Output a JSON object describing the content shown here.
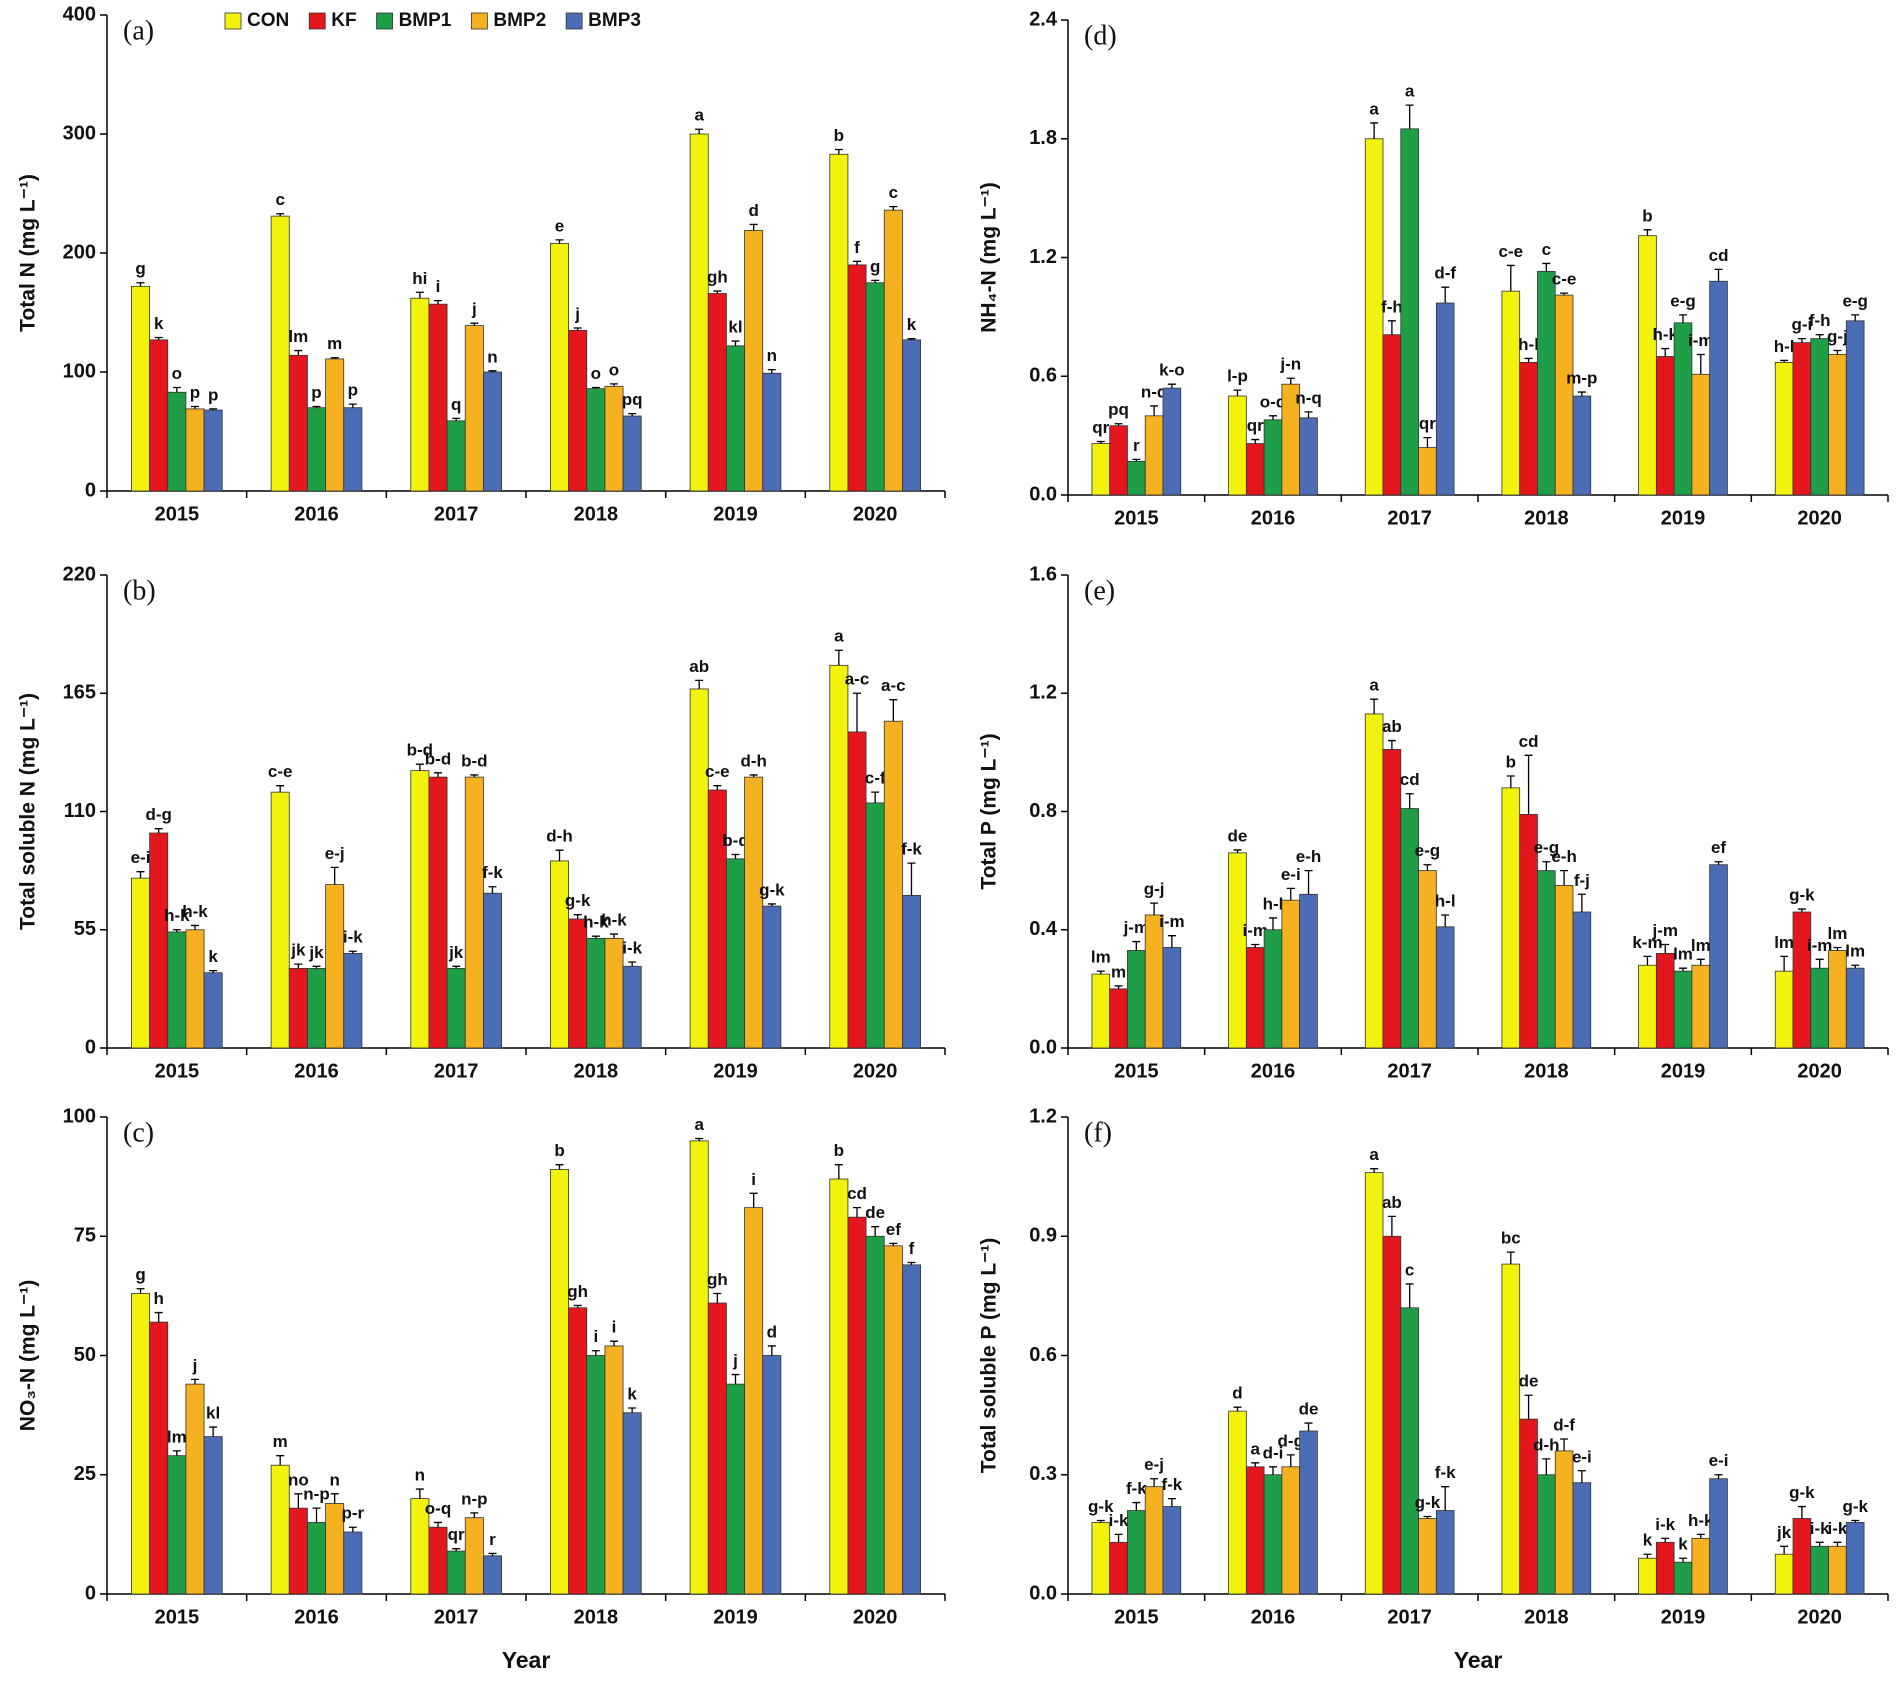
{
  "chart_data": [
    {
      "type": "bar",
      "title": "(a)",
      "y_label": "Total N (mg L⁻¹)",
      "legend": "top",
      "categories": [
        "2015",
        "2016",
        "2017",
        "2018",
        "2019",
        "2020"
      ],
      "ylim": [
        0,
        400
      ],
      "yticks": [
        0,
        100,
        200,
        300,
        400
      ],
      "series": [
        {
          "name": "CON",
          "color": "#f2f20c",
          "values": [
            172,
            231,
            162,
            208,
            300,
            283
          ],
          "errors": [
            3,
            2,
            5,
            3,
            4,
            4
          ],
          "letters": [
            "g",
            "c",
            "hi",
            "e",
            "a",
            "b"
          ]
        },
        {
          "name": "KF",
          "color": "#e3171d",
          "values": [
            127,
            114,
            157,
            135,
            166,
            190
          ],
          "errors": [
            2,
            4,
            3,
            2,
            2,
            3
          ],
          "letters": [
            "k",
            "lm",
            "i",
            "j",
            "gh",
            "f"
          ]
        },
        {
          "name": "BMP1",
          "color": "#1f9e48",
          "values": [
            83,
            70,
            59,
            86,
            122,
            175
          ],
          "errors": [
            4,
            1,
            2,
            1,
            4,
            2
          ],
          "letters": [
            "o",
            "p",
            "q",
            "o",
            "kl",
            "g"
          ]
        },
        {
          "name": "BMP2",
          "color": "#f5b11f",
          "values": [
            69,
            111,
            139,
            88,
            219,
            236
          ],
          "errors": [
            2,
            1,
            2,
            2,
            5,
            3
          ],
          "letters": [
            "p",
            "m",
            "j",
            "o",
            "d",
            "c"
          ]
        },
        {
          "name": "BMP3",
          "color": "#4a6db5",
          "values": [
            68,
            70,
            100,
            63,
            99,
            127
          ],
          "errors": [
            1,
            3,
            1,
            2,
            3,
            1
          ],
          "letters": [
            "p",
            "p",
            "n",
            "pq",
            "n",
            "k"
          ]
        }
      ]
    },
    {
      "type": "bar",
      "title": "(b)",
      "y_label": "Total soluble N (mg L⁻¹)",
      "categories": [
        "2015",
        "2016",
        "2017",
        "2018",
        "2019",
        "2020"
      ],
      "ylim": [
        0,
        220
      ],
      "yticks": [
        0,
        55,
        110,
        165,
        220
      ],
      "series": [
        {
          "color": "#f2f20c",
          "values": [
            79,
            119,
            129,
            87,
            167,
            178
          ],
          "errors": [
            3,
            3,
            3,
            5,
            4,
            7
          ],
          "letters": [
            "e-i",
            "c-e",
            "b-d",
            "d-h",
            "ab",
            "a"
          ]
        },
        {
          "color": "#e3171d",
          "values": [
            100,
            37,
            126,
            60,
            120,
            147
          ],
          "errors": [
            2,
            2,
            2,
            2,
            2,
            18
          ],
          "letters": [
            "d-g",
            "jk",
            "b-d",
            "g-k",
            "c-e",
            "a-c"
          ]
        },
        {
          "color": "#1f9e48",
          "values": [
            54,
            37,
            37,
            51,
            88,
            114
          ],
          "errors": [
            1,
            1,
            1,
            1,
            2,
            5
          ],
          "letters": [
            "h-k",
            "jk",
            "jk",
            "h-k",
            "b-d",
            "c-f"
          ]
        },
        {
          "color": "#f5b11f",
          "values": [
            55,
            76,
            126,
            51,
            126,
            152
          ],
          "errors": [
            2,
            8,
            1,
            2,
            1,
            10
          ],
          "letters": [
            "h-k",
            "e-j",
            "b-d",
            "h-k",
            "d-h",
            "a-c"
          ]
        },
        {
          "color": "#4a6db5",
          "values": [
            35,
            44,
            72,
            38,
            66,
            71
          ],
          "errors": [
            1,
            1,
            3,
            2,
            1,
            15
          ],
          "letters": [
            "k",
            "i-k",
            "f-k",
            "i-k",
            "g-k",
            "f-k"
          ]
        }
      ]
    },
    {
      "type": "bar",
      "title": "(c)",
      "y_label": "NO₃-N (mg L⁻¹)",
      "x_label": "Year",
      "categories": [
        "2015",
        "2016",
        "2017",
        "2018",
        "2019",
        "2020"
      ],
      "ylim": [
        0,
        100
      ],
      "yticks": [
        0,
        25,
        50,
        75,
        100
      ],
      "series": [
        {
          "color": "#f2f20c",
          "values": [
            63,
            27,
            20,
            89,
            95,
            87
          ],
          "errors": [
            1,
            2,
            2,
            1,
            0.5,
            3
          ],
          "letters": [
            "g",
            "m",
            "n",
            "b",
            "a",
            "b"
          ]
        },
        {
          "color": "#e3171d",
          "values": [
            57,
            18,
            14,
            60,
            61,
            79
          ],
          "errors": [
            2,
            3,
            1,
            0.5,
            2,
            2
          ],
          "letters": [
            "h",
            "no",
            "o-q",
            "gh",
            "gh",
            "cd"
          ]
        },
        {
          "color": "#1f9e48",
          "values": [
            29,
            15,
            9,
            50,
            44,
            75
          ],
          "errors": [
            1,
            3,
            0.5,
            1,
            2,
            2
          ],
          "letters": [
            "lm",
            "n-p",
            "qr",
            "i",
            "j",
            "de"
          ]
        },
        {
          "color": "#f5b11f",
          "values": [
            44,
            19,
            16,
            52,
            81,
            73
          ],
          "errors": [
            1,
            2,
            1,
            1,
            3,
            0.5
          ],
          "letters": [
            "j",
            "n",
            "n-p",
            "i",
            "i",
            "ef"
          ]
        },
        {
          "color": "#4a6db5",
          "values": [
            33,
            13,
            8,
            38,
            50,
            69
          ],
          "errors": [
            2,
            1,
            0.5,
            1,
            2,
            0.5
          ],
          "letters": [
            "kl",
            "p-r",
            "r",
            "k",
            "d",
            "f"
          ]
        }
      ]
    },
    {
      "type": "bar",
      "title": "(d)",
      "y_label": "NH₄-N (mg L⁻¹)",
      "categories": [
        "2015",
        "2016",
        "2017",
        "2018",
        "2019",
        "2020"
      ],
      "ylim": [
        0,
        2.4
      ],
      "yticks": [
        {
          "value": 0,
          "label": "0.0"
        },
        0.6,
        1.2,
        1.8,
        2.4
      ],
      "series": [
        {
          "color": "#f2f20c",
          "values": [
            0.26,
            0.5,
            1.8,
            1.03,
            1.31,
            0.67
          ],
          "errors": [
            0.01,
            0.03,
            0.08,
            0.13,
            0.03,
            0.01
          ],
          "letters": [
            "qr",
            "l-p",
            "a",
            "c-e",
            "b",
            "h-l"
          ]
        },
        {
          "color": "#e3171d",
          "values": [
            0.35,
            0.26,
            0.81,
            0.67,
            0.7,
            0.77
          ],
          "errors": [
            0.01,
            0.02,
            0.07,
            0.02,
            0.04,
            0.02
          ],
          "letters": [
            "pq",
            "qr",
            "f-h",
            "h-l",
            "h-k",
            "g-i"
          ]
        },
        {
          "color": "#1f9e48",
          "values": [
            0.17,
            0.38,
            1.85,
            1.13,
            0.87,
            0.79
          ],
          "errors": [
            0.01,
            0.02,
            0.12,
            0.04,
            0.04,
            0.02
          ],
          "letters": [
            "r",
            "o-q",
            "a",
            "c",
            "e-g",
            "f-h"
          ]
        },
        {
          "color": "#f5b11f",
          "values": [
            0.4,
            0.56,
            0.24,
            1.01,
            0.61,
            0.71
          ],
          "errors": [
            0.05,
            0.03,
            0.05,
            0.01,
            0.1,
            0.02
          ],
          "letters": [
            "n-q",
            "j-n",
            "qr",
            "c-e",
            "i-m",
            "g-j"
          ]
        },
        {
          "color": "#4a6db5",
          "values": [
            0.54,
            0.39,
            0.97,
            0.5,
            1.08,
            0.88
          ],
          "errors": [
            0.02,
            0.03,
            0.08,
            0.02,
            0.06,
            0.03
          ],
          "letters": [
            "k-o",
            "n-q",
            "d-f",
            "m-p",
            "cd",
            "e-g"
          ]
        }
      ]
    },
    {
      "type": "bar",
      "title": "(e)",
      "y_label": "Total P (mg L⁻¹)",
      "categories": [
        "2015",
        "2016",
        "2017",
        "2018",
        "2019",
        "2020"
      ],
      "ylim": [
        0,
        1.6
      ],
      "yticks": [
        {
          "value": 0,
          "label": "0.0"
        },
        0.4,
        0.8,
        1.2,
        1.6
      ],
      "series": [
        {
          "color": "#f2f20c",
          "values": [
            0.25,
            0.66,
            1.13,
            0.88,
            0.28,
            0.26
          ],
          "errors": [
            0.01,
            0.01,
            0.05,
            0.04,
            0.03,
            0.05
          ],
          "letters": [
            "lm",
            "de",
            "a",
            "b",
            "k-m",
            "lm"
          ]
        },
        {
          "color": "#e3171d",
          "values": [
            0.2,
            0.34,
            1.01,
            0.79,
            0.32,
            0.46
          ],
          "errors": [
            0.01,
            0.01,
            0.03,
            0.2,
            0.03,
            0.01
          ],
          "letters": [
            "m",
            "i-m",
            "ab",
            "cd",
            "j-m",
            "g-k"
          ]
        },
        {
          "color": "#1f9e48",
          "values": [
            0.33,
            0.4,
            0.81,
            0.6,
            0.26,
            0.27
          ],
          "errors": [
            0.03,
            0.04,
            0.05,
            0.03,
            0.01,
            0.03
          ],
          "letters": [
            "j-m",
            "h-l",
            "cd",
            "e-g",
            "lm",
            "i-m"
          ]
        },
        {
          "color": "#f5b11f",
          "values": [
            0.45,
            0.5,
            0.6,
            0.55,
            0.28,
            0.33
          ],
          "errors": [
            0.04,
            0.04,
            0.02,
            0.05,
            0.02,
            0.01
          ],
          "letters": [
            "g-j",
            "e-i",
            "e-g",
            "e-h",
            "lm",
            "lm"
          ]
        },
        {
          "color": "#4a6db5",
          "values": [
            0.34,
            0.52,
            0.41,
            0.46,
            0.62,
            0.27
          ],
          "errors": [
            0.04,
            0.08,
            0.04,
            0.06,
            0.01,
            0.01
          ],
          "letters": [
            "i-m",
            "e-h",
            "h-l",
            "f-j",
            "ef",
            "lm"
          ]
        }
      ]
    },
    {
      "type": "bar",
      "title": "(f)",
      "y_label": "Total soluble P (mg L⁻¹)",
      "x_label": "Year",
      "categories": [
        "2015",
        "2016",
        "2017",
        "2018",
        "2019",
        "2020"
      ],
      "ylim": [
        0,
        1.2
      ],
      "yticks": [
        {
          "value": 0,
          "label": "0.0"
        },
        0.3,
        0.6,
        0.9,
        1.2
      ],
      "series": [
        {
          "color": "#f2f20c",
          "values": [
            0.18,
            0.46,
            1.06,
            0.83,
            0.09,
            0.1
          ],
          "errors": [
            0.005,
            0.01,
            0.01,
            0.03,
            0.01,
            0.02
          ],
          "letters": [
            "g-k",
            "d",
            "a",
            "bc",
            "k",
            "jk"
          ]
        },
        {
          "color": "#e3171d",
          "values": [
            0.13,
            0.32,
            0.9,
            0.44,
            0.13,
            0.19
          ],
          "errors": [
            0.02,
            0.01,
            0.05,
            0.06,
            0.01,
            0.03
          ],
          "letters": [
            "i-k",
            "a",
            "ab",
            "de",
            "i-k",
            "g-k"
          ]
        },
        {
          "color": "#1f9e48",
          "values": [
            0.21,
            0.3,
            0.72,
            0.3,
            0.08,
            0.12
          ],
          "errors": [
            0.02,
            0.02,
            0.06,
            0.04,
            0.01,
            0.01
          ],
          "letters": [
            "f-k",
            "d-i",
            "c",
            "d-h",
            "k",
            "i-k"
          ]
        },
        {
          "color": "#f5b11f",
          "values": [
            0.27,
            0.32,
            0.19,
            0.36,
            0.14,
            0.12
          ],
          "errors": [
            0.02,
            0.03,
            0.005,
            0.03,
            0.01,
            0.01
          ],
          "letters": [
            "e-j",
            "d-g",
            "g-k",
            "d-f",
            "h-k",
            "i-k"
          ]
        },
        {
          "color": "#4a6db5",
          "values": [
            0.22,
            0.41,
            0.21,
            0.28,
            0.29,
            0.18
          ],
          "errors": [
            0.02,
            0.02,
            0.06,
            0.03,
            0.01,
            0.005
          ],
          "letters": [
            "f-k",
            "de",
            "f-k",
            "e-i",
            "e-i",
            "g-k"
          ]
        }
      ]
    }
  ]
}
